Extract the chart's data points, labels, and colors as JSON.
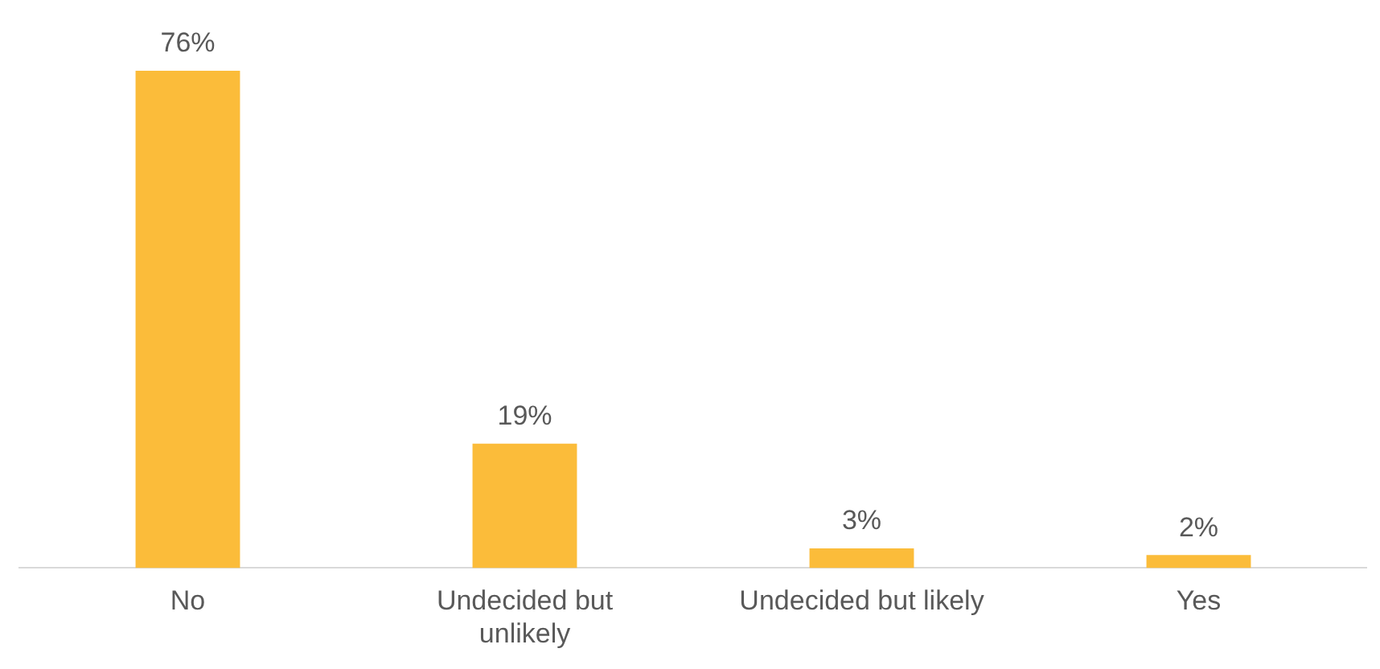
{
  "chart_data": {
    "type": "bar",
    "categories": [
      "No",
      "Undecided but unlikely",
      "Undecided but likely",
      "Yes"
    ],
    "values": [
      76,
      19,
      3,
      2
    ],
    "value_labels": [
      "76%",
      "19%",
      "3%",
      "2%"
    ],
    "color": "#fbbc3a",
    "grid": false,
    "legend": false
  }
}
